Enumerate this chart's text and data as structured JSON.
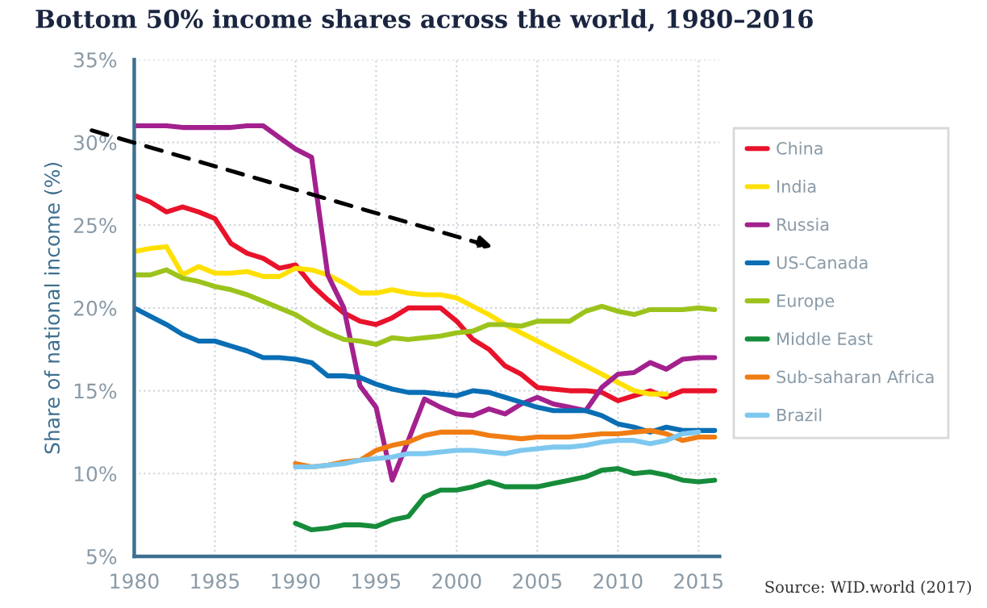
{
  "chart_data": {
    "type": "line",
    "title": "Bottom 50% income shares across the world, 1980–2016",
    "ylabel": "Share of national income (%)",
    "xlim": [
      1980,
      2016.3
    ],
    "xticks": [
      1980,
      1985,
      1990,
      1995,
      2000,
      2005,
      2010,
      2015
    ],
    "ylim": [
      5,
      35
    ],
    "yticks": [
      {
        "value": 5,
        "label": "5%"
      },
      {
        "value": 10,
        "label": "10%"
      },
      {
        "value": 15,
        "label": "15%"
      },
      {
        "value": 20,
        "label": "20%"
      },
      {
        "value": 25,
        "label": "25%"
      },
      {
        "value": 30,
        "label": "30%"
      },
      {
        "value": 35,
        "label": "35%"
      }
    ],
    "grid": true,
    "legend": "right",
    "marker": "none",
    "line_style": "solid",
    "annotations": [
      "Source: WID.world (2017)"
    ],
    "series": [
      {
        "name": "China",
        "color": "#e8132b",
        "x": [
          1980,
          1981,
          1982,
          1983,
          1984,
          1985,
          1986,
          1987,
          1988,
          1989,
          1990,
          1991,
          1992,
          1993,
          1994,
          1995,
          1996,
          1997,
          1998,
          1999,
          2000,
          2001,
          2002,
          2003,
          2004,
          2005,
          2006,
          2007,
          2008,
          2009,
          2010,
          2011,
          2012,
          2013,
          2014,
          2015,
          2016
        ],
        "values": [
          26.8,
          26.4,
          25.8,
          26.1,
          25.8,
          25.4,
          23.9,
          23.3,
          23.0,
          22.4,
          22.6,
          21.4,
          20.5,
          19.7,
          19.2,
          19.0,
          19.4,
          20.0,
          20.0,
          20.0,
          19.2,
          18.1,
          17.5,
          16.5,
          16.0,
          15.2,
          15.1,
          15.0,
          15.0,
          14.9,
          14.4,
          14.7,
          15.0,
          14.6,
          15.0,
          15.0,
          15.0
        ]
      },
      {
        "name": "India",
        "color": "#ffe000",
        "x": [
          1980,
          1981,
          1982,
          1983,
          1984,
          1985,
          1986,
          1987,
          1988,
          1989,
          1990,
          1991,
          1992,
          1993,
          1994,
          1995,
          1996,
          1997,
          1998,
          1999,
          2000,
          2001,
          2002,
          2003,
          2004,
          2005,
          2006,
          2007,
          2008,
          2009,
          2010,
          2011,
          2012,
          2013
        ],
        "values": [
          23.4,
          23.6,
          23.7,
          22.0,
          22.5,
          22.1,
          22.1,
          22.2,
          21.9,
          21.9,
          22.4,
          22.3,
          22.0,
          21.5,
          20.9,
          20.9,
          21.1,
          20.9,
          20.8,
          20.8,
          20.6,
          20.1,
          19.6,
          19.0,
          18.5,
          18.0,
          17.5,
          17.0,
          16.5,
          16.0,
          15.5,
          15.0,
          14.8,
          14.8
        ]
      },
      {
        "name": "Russia",
        "color": "#a3218e",
        "x": [
          1980,
          1981,
          1982,
          1983,
          1984,
          1985,
          1986,
          1987,
          1988,
          1989,
          1990,
          1991,
          1992,
          1993,
          1994,
          1995,
          1996,
          1997,
          1998,
          1999,
          2000,
          2001,
          2002,
          2003,
          2004,
          2005,
          2006,
          2007,
          2008,
          2009,
          2010,
          2011,
          2012,
          2013,
          2014,
          2015,
          2016
        ],
        "values": [
          31.0,
          31.0,
          31.0,
          30.9,
          30.9,
          30.9,
          30.9,
          31.0,
          31.0,
          30.3,
          29.6,
          29.1,
          22.0,
          20.0,
          15.3,
          14.0,
          9.6,
          12.0,
          14.5,
          14.0,
          13.6,
          13.5,
          13.9,
          13.6,
          14.2,
          14.6,
          14.2,
          14.0,
          13.8,
          15.2,
          16.0,
          16.1,
          16.7,
          16.3,
          16.9,
          17.0,
          17.0
        ]
      },
      {
        "name": "US-Canada",
        "color": "#0a6eb4",
        "x": [
          1980,
          1981,
          1982,
          1983,
          1984,
          1985,
          1986,
          1987,
          1988,
          1989,
          1990,
          1991,
          1992,
          1993,
          1994,
          1995,
          1996,
          1997,
          1998,
          1999,
          2000,
          2001,
          2002,
          2003,
          2004,
          2005,
          2006,
          2007,
          2008,
          2009,
          2010,
          2011,
          2012,
          2013,
          2014,
          2015,
          2016
        ],
        "values": [
          20.0,
          19.5,
          19.0,
          18.4,
          18.0,
          18.0,
          17.7,
          17.4,
          17.0,
          17.0,
          16.9,
          16.7,
          15.9,
          15.9,
          15.8,
          15.4,
          15.1,
          14.9,
          14.9,
          14.8,
          14.7,
          15.0,
          14.9,
          14.6,
          14.3,
          14.0,
          13.8,
          13.8,
          13.8,
          13.5,
          13.0,
          12.8,
          12.5,
          12.8,
          12.6,
          12.6,
          12.6
        ]
      },
      {
        "name": "Europe",
        "color": "#9cc31c",
        "x": [
          1980,
          1981,
          1982,
          1983,
          1984,
          1985,
          1986,
          1987,
          1988,
          1989,
          1990,
          1991,
          1992,
          1993,
          1994,
          1995,
          1996,
          1997,
          1998,
          1999,
          2000,
          2001,
          2002,
          2003,
          2004,
          2005,
          2006,
          2007,
          2008,
          2009,
          2010,
          2011,
          2012,
          2013,
          2014,
          2015,
          2016
        ],
        "values": [
          22.0,
          22.0,
          22.3,
          21.8,
          21.6,
          21.3,
          21.1,
          20.8,
          20.4,
          20.0,
          19.6,
          19.0,
          18.5,
          18.1,
          18.0,
          17.8,
          18.2,
          18.1,
          18.2,
          18.3,
          18.5,
          18.6,
          19.0,
          19.0,
          18.9,
          19.2,
          19.2,
          19.2,
          19.8,
          20.1,
          19.8,
          19.6,
          19.9,
          19.9,
          19.9,
          20.0,
          19.9
        ]
      },
      {
        "name": "Middle East",
        "color": "#168c3a",
        "x": [
          1990,
          1991,
          1992,
          1993,
          1994,
          1995,
          1996,
          1997,
          1998,
          1999,
          2000,
          2001,
          2002,
          2003,
          2004,
          2005,
          2006,
          2007,
          2008,
          2009,
          2010,
          2011,
          2012,
          2013,
          2014,
          2015,
          2016
        ],
        "values": [
          7.0,
          6.6,
          6.7,
          6.9,
          6.9,
          6.8,
          7.2,
          7.4,
          8.6,
          9.0,
          9.0,
          9.2,
          9.5,
          9.2,
          9.2,
          9.2,
          9.4,
          9.6,
          9.8,
          10.2,
          10.3,
          10.0,
          10.1,
          9.9,
          9.6,
          9.5,
          9.6
        ]
      },
      {
        "name": "Sub-saharan Africa",
        "color": "#f07d13",
        "x": [
          1990,
          1991,
          1992,
          1993,
          1994,
          1995,
          1996,
          1997,
          1998,
          1999,
          2000,
          2001,
          2002,
          2003,
          2004,
          2005,
          2006,
          2007,
          2008,
          2009,
          2010,
          2011,
          2012,
          2013,
          2014,
          2015,
          2016
        ],
        "values": [
          10.6,
          10.4,
          10.5,
          10.7,
          10.8,
          11.4,
          11.7,
          11.9,
          12.3,
          12.5,
          12.5,
          12.5,
          12.3,
          12.2,
          12.1,
          12.2,
          12.2,
          12.2,
          12.3,
          12.4,
          12.4,
          12.5,
          12.6,
          12.4,
          12.0,
          12.2,
          12.2
        ]
      },
      {
        "name": "Brazil",
        "color": "#7ec8ef",
        "x": [
          1990,
          1991,
          1992,
          1993,
          1994,
          1995,
          1996,
          1997,
          1998,
          1999,
          2000,
          2001,
          2002,
          2003,
          2004,
          2005,
          2006,
          2007,
          2008,
          2009,
          2010,
          2011,
          2012,
          2013,
          2014,
          2015
        ],
        "values": [
          10.4,
          10.4,
          10.5,
          10.6,
          10.8,
          10.9,
          11.0,
          11.2,
          11.2,
          11.3,
          11.4,
          11.4,
          11.3,
          11.2,
          11.4,
          11.5,
          11.6,
          11.6,
          11.7,
          11.9,
          12.0,
          12.0,
          11.8,
          12.0,
          12.4,
          12.5
        ]
      }
    ]
  }
}
